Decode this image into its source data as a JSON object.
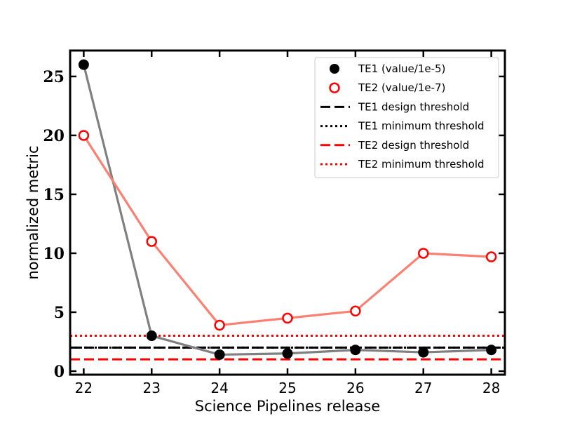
{
  "chart_data": {
    "type": "line",
    "xlabel": "Science Pipelines release",
    "ylabel": "normalized metric",
    "x": [
      22,
      23,
      24,
      25,
      26,
      27,
      28
    ],
    "xlim": [
      21.8,
      28.2
    ],
    "ylim": [
      -0.3,
      27.2
    ],
    "yticks": [
      0,
      5,
      10,
      15,
      20,
      25
    ],
    "grid": false,
    "legend_position": "top-right",
    "series": [
      {
        "name": "TE1 (value/1e-5)",
        "kind": "points-with-line",
        "marker": "filled-circle",
        "marker_color": "#000000",
        "line_color": "#808080",
        "values": [
          26.0,
          3.0,
          1.4,
          1.5,
          1.8,
          1.6,
          1.8
        ]
      },
      {
        "name": "TE2 (value/1e-7)",
        "kind": "points-with-line",
        "marker": "open-circle",
        "marker_color": "#ff0000",
        "line_color": "#fa8072",
        "values": [
          20.0,
          11.0,
          3.9,
          4.5,
          5.1,
          10.0,
          9.7
        ]
      }
    ],
    "thresholds": [
      {
        "name": "TE1 design threshold",
        "value": 2.0,
        "color": "#000000",
        "style": "dashed"
      },
      {
        "name": "TE1 minimum threshold",
        "value": 2.0,
        "color": "#000000",
        "style": "dotted"
      },
      {
        "name": "TE2 design threshold",
        "value": 1.0,
        "color": "#ff0000",
        "style": "dashed"
      },
      {
        "name": "TE2 minimum threshold",
        "value": 3.0,
        "color": "#ff0000",
        "style": "dotted"
      }
    ]
  }
}
